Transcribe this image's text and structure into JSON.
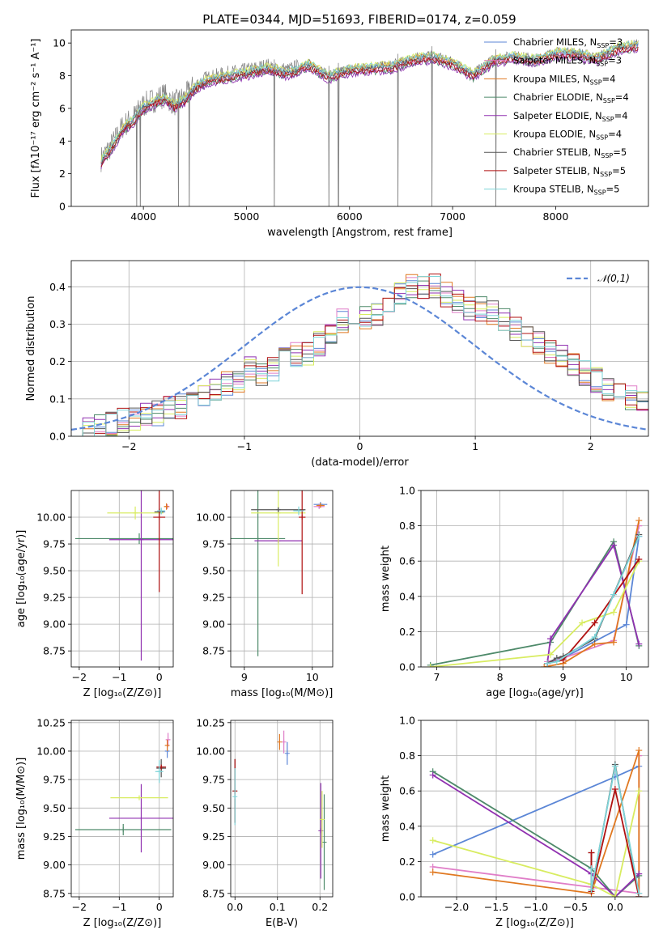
{
  "figure": {
    "title": "PLATE=0344, MJD=51693, FIBERID=0174, z=0.059"
  },
  "legend_series": [
    {
      "name": "Chabrier MILES, N$_{SSP}$=3",
      "label": "Chabrier MILES, N",
      "sub": "SSP",
      "tail": "=3",
      "color": "#5b86d6"
    },
    {
      "name": "Salpeter MILES, N$_{SSP}$=3",
      "label": "Salpeter MILES, N",
      "sub": "SSP",
      "tail": "=3",
      "color": "#e07ec8"
    },
    {
      "name": "Kroupa MILES, N$_{SSP}$=4",
      "label": "Kroupa MILES, N",
      "sub": "SSP",
      "tail": "=4",
      "color": "#e07820"
    },
    {
      "name": "Chabrier ELODIE, N$_{SSP}$=4",
      "label": "Chabrier ELODIE, N",
      "sub": "SSP",
      "tail": "=4",
      "color": "#4e8a6a"
    },
    {
      "name": "Salpeter ELODIE, N$_{SSP}$=4",
      "label": "Salpeter ELODIE, N",
      "sub": "SSP",
      "tail": "=4",
      "color": "#9030b0"
    },
    {
      "name": "Kroupa ELODIE, N$_{SSP}$=4",
      "label": "Kroupa ELODIE, N",
      "sub": "SSP",
      "tail": "=4",
      "color": "#d8ec60"
    },
    {
      "name": "Chabrier STELIB, N$_{SSP}$=5",
      "label": "Chabrier STELIB, N",
      "sub": "SSP",
      "tail": "=5",
      "color": "#555555"
    },
    {
      "name": "Salpeter STELIB, N$_{SSP}$=5",
      "label": "Salpeter STELIB, N",
      "sub": "SSP",
      "tail": "=5",
      "color": "#b01010"
    },
    {
      "name": "Kroupa STELIB, N$_{SSP}$=5",
      "label": "Kroupa STELIB, N",
      "sub": "SSP",
      "tail": "=5",
      "color": "#7ed4d8"
    }
  ],
  "chart_data": [
    {
      "id": "spectrum",
      "type": "line",
      "xlabel": "wavelength [Angstrom, rest frame]",
      "ylabel": "Flux [f$_\\lambda$10$^{-17}$ erg cm$^{-2}$ s$^{-1}$ A$^{-1}$]",
      "ylabel_display": "Flux [fλ10⁻¹⁷ erg cm⁻² s⁻¹ A⁻¹]",
      "xlim": [
        3300,
        8900
      ],
      "ylim": [
        0,
        10.8
      ],
      "xticks": [
        4000,
        5000,
        6000,
        7000,
        8000
      ],
      "yticks": [
        0,
        2,
        4,
        6,
        8,
        10
      ],
      "data_color": "#808080",
      "data_keypoints": {
        "x": [
          3590,
          3650,
          3720,
          3800,
          3900,
          4000,
          4100,
          4200,
          4300,
          4400,
          4500,
          4600,
          4800,
          5000,
          5200,
          5400,
          5600,
          5800,
          6000,
          6200,
          6400,
          6600,
          6800,
          7000,
          7200,
          7400,
          7600,
          7800,
          8000,
          8200,
          8400,
          8600,
          8800
        ],
        "y": [
          2.9,
          3.4,
          4.0,
          4.9,
          5.4,
          6.2,
          6.5,
          6.8,
          6.3,
          6.7,
          7.4,
          7.8,
          8.1,
          8.3,
          8.6,
          8.3,
          8.8,
          8.1,
          8.5,
          8.6,
          8.7,
          9.1,
          9.3,
          8.9,
          8.2,
          9.1,
          9.3,
          9.1,
          9.5,
          9.5,
          9.2,
          9.8,
          10.0
        ]
      },
      "model_offsets": [
        0.0,
        -0.15,
        0.05,
        -0.3,
        -0.35,
        0.15,
        -0.05,
        -0.2,
        0.1
      ],
      "absorption_lines": [
        3935,
        3970,
        4340,
        4445,
        5270,
        5800,
        5892,
        6470,
        6800,
        7420
      ],
      "legend_position": "upper right"
    },
    {
      "id": "residuals",
      "type": "histogram",
      "xlabel": "(data-model)/error",
      "ylabel": "Normed distribution",
      "xlim": [
        -2.5,
        2.5
      ],
      "ylim": [
        0,
        0.47
      ],
      "xticks": [
        -2,
        -1,
        0,
        1,
        2
      ],
      "yticks": [
        0.0,
        0.1,
        0.2,
        0.3,
        0.4
      ],
      "bin_width": 0.1,
      "reference_curve": {
        "name": "𝒩(0,1)",
        "mean": 0,
        "sigma": 1,
        "color": "#5b86d6",
        "dash": true
      },
      "bin_centers": [
        -2.45,
        -2.35,
        -2.25,
        -2.15,
        -2.05,
        -1.95,
        -1.85,
        -1.75,
        -1.65,
        -1.55,
        -1.45,
        -1.35,
        -1.25,
        -1.15,
        -1.05,
        -0.95,
        -0.85,
        -0.75,
        -0.65,
        -0.55,
        -0.45,
        -0.35,
        -0.25,
        -0.15,
        -0.05,
        0.05,
        0.15,
        0.25,
        0.35,
        0.45,
        0.55,
        0.65,
        0.75,
        0.85,
        0.95,
        1.05,
        1.15,
        1.25,
        1.35,
        1.45,
        1.55,
        1.65,
        1.75,
        1.85,
        1.95,
        2.05,
        2.15,
        2.25,
        2.35,
        2.45
      ],
      "base_density": [
        0.02,
        0.02,
        0.03,
        0.03,
        0.04,
        0.05,
        0.06,
        0.06,
        0.08,
        0.08,
        0.09,
        0.11,
        0.12,
        0.14,
        0.15,
        0.18,
        0.16,
        0.18,
        0.21,
        0.22,
        0.22,
        0.25,
        0.27,
        0.31,
        0.32,
        0.32,
        0.33,
        0.35,
        0.38,
        0.4,
        0.4,
        0.4,
        0.38,
        0.36,
        0.34,
        0.34,
        0.33,
        0.31,
        0.29,
        0.27,
        0.25,
        0.23,
        0.21,
        0.19,
        0.17,
        0.15,
        0.13,
        0.11,
        0.1,
        0.09
      ],
      "legend_position": "upper right"
    },
    {
      "id": "age_vs_Z",
      "type": "errorbar",
      "xlabel": "Z [log$_{10}$(Z/Z$_\\odot$)]",
      "xlabel_display": "Z [log₁₀(Z/Z⊙)]",
      "ylabel": "age [log$_{10}$(age/yr)]",
      "ylabel_display": "age  [log₁₀(age/yr)]",
      "xlim": [
        -2.2,
        0.35
      ],
      "ylim": [
        8.6,
        10.25
      ],
      "xticks": [
        -2,
        -1,
        0
      ],
      "yticks": [
        8.75,
        9.0,
        9.25,
        9.5,
        9.75,
        10.0
      ],
      "points": [
        {
          "series": 0,
          "x": 0.05,
          "y": 10.05,
          "xerr": 0.1,
          "yerr": 0.0
        },
        {
          "series": 1,
          "x": 0.2,
          "y": 10.1,
          "xerr": 0.05,
          "yerr": 0.02
        },
        {
          "series": 2,
          "x": 0.18,
          "y": 10.1,
          "xerr": 0.06,
          "yerr": 0.03
        },
        {
          "series": 3,
          "x": -0.5,
          "y": 9.8,
          "xerr": 1.6,
          "yerr": 0.05
        },
        {
          "series": 4,
          "x": -0.45,
          "y": 9.79,
          "xerr": 0.8,
          "yerr": 1.13
        },
        {
          "series": 5,
          "x": -0.6,
          "y": 10.04,
          "xerr": 0.7,
          "yerr": 0.06
        },
        {
          "series": 6,
          "x": 0.0,
          "y": 10.05,
          "xerr": 0.12,
          "yerr": 0.03
        },
        {
          "series": 7,
          "x": 0.0,
          "y": 10.0,
          "xerr": 0.15,
          "yerr": 0.7
        },
        {
          "series": 8,
          "x": 0.05,
          "y": 10.06,
          "xerr": 0.1,
          "yerr": 0.03
        }
      ]
    },
    {
      "id": "age_vs_mass",
      "type": "errorbar",
      "xlabel": "mass [log$_{10}$(M/M$_\\odot$)]",
      "xlabel_display": "mass [log₁₀(M/M⊙)]",
      "ylabel": "",
      "xlim": [
        8.8,
        10.3
      ],
      "ylim": [
        8.6,
        10.25
      ],
      "xticks": [
        9,
        10
      ],
      "yticks": [
        8.75,
        9.0,
        9.25,
        9.5,
        9.75,
        10.0
      ],
      "points": [
        {
          "series": 0,
          "x": 10.12,
          "y": 10.12,
          "xerr": 0.1,
          "yerr": 0.02
        },
        {
          "series": 1,
          "x": 10.1,
          "y": 10.1,
          "xerr": 0.08,
          "yerr": 0.02
        },
        {
          "series": 2,
          "x": 10.12,
          "y": 10.11,
          "xerr": 0.06,
          "yerr": 0.02
        },
        {
          "series": 3,
          "x": 9.2,
          "y": 9.8,
          "xerr": 0.4,
          "yerr": 1.1
        },
        {
          "series": 4,
          "x": 9.5,
          "y": 9.78,
          "xerr": 0.35,
          "yerr": 0.02
        },
        {
          "series": 5,
          "x": 9.5,
          "y": 10.04,
          "xerr": 0.4,
          "yerr": 0.5
        },
        {
          "series": 6,
          "x": 9.5,
          "y": 10.07,
          "xerr": 0.4,
          "yerr": 0.02
        },
        {
          "series": 7,
          "x": 9.85,
          "y": 10.0,
          "xerr": 0.05,
          "yerr": 0.72
        },
        {
          "series": 8,
          "x": 9.8,
          "y": 10.06,
          "xerr": 0.08,
          "yerr": 0.04
        }
      ]
    },
    {
      "id": "mass_weight_vs_age",
      "type": "line",
      "xlabel": "age [log$_{10}$(age/yr)]",
      "xlabel_display": "age  [log₁₀(age/yr)]",
      "ylabel": "mass weight",
      "xlim": [
        6.75,
        10.35
      ],
      "ylim": [
        0,
        1.0
      ],
      "xticks": [
        7,
        8,
        9,
        10
      ],
      "yticks": [
        0.0,
        0.2,
        0.4,
        0.6,
        0.8,
        1.0
      ],
      "series": [
        {
          "series": 0,
          "x": [
            8.75,
            9.0,
            10.0,
            10.2
          ],
          "y": [
            0.02,
            0.05,
            0.24,
            0.74
          ]
        },
        {
          "series": 1,
          "x": [
            8.75,
            9.0,
            9.8,
            10.2
          ],
          "y": [
            0.03,
            0.05,
            0.15,
            0.8
          ]
        },
        {
          "series": 2,
          "x": [
            8.7,
            9.0,
            9.5,
            9.8,
            10.2
          ],
          "y": [
            0.0,
            0.02,
            0.13,
            0.14,
            0.83
          ]
        },
        {
          "series": 3,
          "x": [
            6.9,
            8.8,
            9.8,
            10.2
          ],
          "y": [
            0.01,
            0.14,
            0.71,
            0.12
          ]
        },
        {
          "series": 4,
          "x": [
            8.75,
            8.8,
            9.8,
            10.2
          ],
          "y": [
            0.02,
            0.16,
            0.69,
            0.13
          ]
        },
        {
          "series": 5,
          "x": [
            6.9,
            8.8,
            9.3,
            9.8,
            10.2
          ],
          "y": [
            0.0,
            0.07,
            0.25,
            0.31,
            0.6
          ]
        },
        {
          "series": 6,
          "x": [
            8.75,
            8.9,
            9.0,
            9.5,
            10.2
          ],
          "y": [
            0.02,
            0.05,
            0.06,
            0.16,
            0.75
          ]
        },
        {
          "series": 7,
          "x": [
            8.75,
            9.0,
            9.5,
            10.2
          ],
          "y": [
            0.02,
            0.04,
            0.25,
            0.61
          ]
        },
        {
          "series": 8,
          "x": [
            8.75,
            8.9,
            9.5,
            9.8,
            10.2
          ],
          "y": [
            0.02,
            0.03,
            0.17,
            0.41,
            0.74
          ]
        }
      ]
    },
    {
      "id": "mass_vs_Z",
      "type": "errorbar",
      "xlabel": "Z [log$_{10}$(Z/Z$_\\odot$)]",
      "xlabel_display": "Z [log₁₀(Z/Z⊙)]",
      "ylabel": "mass [log$_{10}$(M/M$_\\odot$)]",
      "ylabel_display": "mass [log₁₀(M/M⊙)]",
      "xlim": [
        -2.2,
        0.35
      ],
      "ylim": [
        8.72,
        10.27
      ],
      "xticks": [
        -2,
        -1,
        0
      ],
      "yticks": [
        8.75,
        9.0,
        9.25,
        9.5,
        9.75,
        10.0,
        10.25
      ],
      "points": [
        {
          "series": 0,
          "x": 0.2,
          "y": 10.0,
          "xerr": 0.05,
          "yerr": 0.06
        },
        {
          "series": 1,
          "x": 0.22,
          "y": 10.1,
          "xerr": 0.05,
          "yerr": 0.06
        },
        {
          "series": 2,
          "x": 0.2,
          "y": 10.05,
          "xerr": 0.05,
          "yerr": 0.05
        },
        {
          "series": 3,
          "x": -0.9,
          "y": 9.31,
          "xerr": 1.2,
          "yerr": 0.05
        },
        {
          "series": 4,
          "x": -0.45,
          "y": 9.41,
          "xerr": 0.8,
          "yerr": 0.3
        },
        {
          "series": 5,
          "x": -0.5,
          "y": 9.59,
          "xerr": 0.72,
          "yerr": 0.02
        },
        {
          "series": 6,
          "x": 0.05,
          "y": 9.85,
          "xerr": 0.12,
          "yerr": 0.08
        },
        {
          "series": 7,
          "x": 0.05,
          "y": 9.86,
          "xerr": 0.12,
          "yerr": 0.02
        },
        {
          "series": 8,
          "x": 0.0,
          "y": 9.82,
          "xerr": 0.1,
          "yerr": 0.1
        }
      ]
    },
    {
      "id": "mass_vs_ebv",
      "type": "errorbar",
      "xlabel": "E(B-V)",
      "ylabel": "",
      "xlim": [
        -0.01,
        0.23
      ],
      "ylim": [
        8.72,
        10.27
      ],
      "xticks": [
        0.0,
        0.1,
        0.2
      ],
      "yticks": [
        8.75,
        9.0,
        9.25,
        9.5,
        9.75,
        10.0,
        10.25
      ],
      "points": [
        {
          "series": 0,
          "x": 0.123,
          "y": 9.98,
          "xerr": 0,
          "yerr": 0.1
        },
        {
          "series": 1,
          "x": 0.115,
          "y": 10.08,
          "xerr": 0,
          "yerr": 0.1
        },
        {
          "series": 2,
          "x": 0.105,
          "y": 10.08,
          "xerr": 0,
          "yerr": 0.07
        },
        {
          "series": 3,
          "x": 0.21,
          "y": 9.2,
          "xerr": 0,
          "yerr": 0.42
        },
        {
          "series": 4,
          "x": 0.202,
          "y": 9.3,
          "xerr": 0,
          "yerr": 0.42
        },
        {
          "series": 5,
          "x": 0.205,
          "y": 9.4,
          "xerr": 0,
          "yerr": 0.25
        },
        {
          "series": 6,
          "x": 0.0,
          "y": 9.65,
          "xerr": 0,
          "yerr": 0.28
        },
        {
          "series": 7,
          "x": 0.0,
          "y": 9.65,
          "xerr": 0,
          "yerr": 0.28
        },
        {
          "series": 8,
          "x": 0.0,
          "y": 9.6,
          "xerr": 0,
          "yerr": 0.25
        }
      ]
    },
    {
      "id": "mass_weight_vs_Z",
      "type": "line",
      "xlabel": "Z [log$_{10}$(Z/Z$_\\odot$)]",
      "xlabel_display": "Z [log₁₀(Z/Z⊙)]",
      "ylabel": "mass weight",
      "xlim": [
        -2.45,
        0.42
      ],
      "ylim": [
        0,
        1.0
      ],
      "xticks": [
        -2.0,
        -1.5,
        -1.0,
        -0.5,
        0.0
      ],
      "yticks": [
        0.0,
        0.2,
        0.4,
        0.6,
        0.8,
        1.0
      ],
      "series": [
        {
          "series": 0,
          "x": [
            -2.3,
            0.0,
            0.3
          ],
          "y": [
            0.24,
            0.68,
            0.74
          ]
        },
        {
          "series": 1,
          "x": [
            -2.3,
            0.3,
            0.3
          ],
          "y": [
            0.17,
            0.02,
            0.8
          ]
        },
        {
          "series": 2,
          "x": [
            -2.3,
            -0.3,
            0.3,
            0.3
          ],
          "y": [
            0.14,
            0.02,
            0.83,
            0.0
          ]
        },
        {
          "series": 3,
          "x": [
            -2.3,
            -0.3,
            0.0,
            0.3
          ],
          "y": [
            0.71,
            0.16,
            0.0,
            0.12
          ]
        },
        {
          "series": 4,
          "x": [
            -2.3,
            -0.3,
            0.0,
            0.3
          ],
          "y": [
            0.69,
            0.13,
            0.0,
            0.13
          ]
        },
        {
          "series": 5,
          "x": [
            -2.3,
            -0.3,
            0.0,
            0.3
          ],
          "y": [
            0.32,
            0.07,
            0.0,
            0.6
          ]
        },
        {
          "series": 6,
          "x": [
            -0.3,
            -0.3,
            0.0,
            0.3
          ],
          "y": [
            0.25,
            0.03,
            0.75,
            0.0
          ]
        },
        {
          "series": 7,
          "x": [
            -0.3,
            -0.3,
            0.0,
            0.3
          ],
          "y": [
            0.25,
            0.03,
            0.61,
            0.0
          ]
        },
        {
          "series": 8,
          "x": [
            -0.3,
            -0.3,
            0.0,
            0.3
          ],
          "y": [
            0.16,
            0.04,
            0.74,
            0.02
          ]
        }
      ]
    }
  ]
}
